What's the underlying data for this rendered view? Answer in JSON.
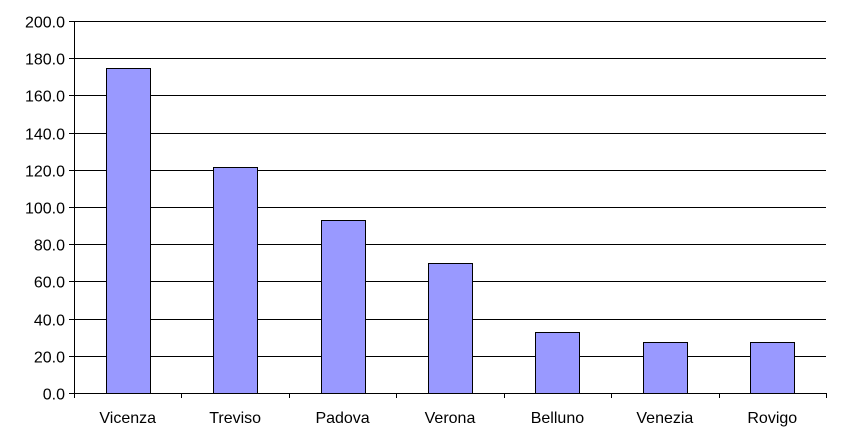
{
  "chart_data": {
    "type": "bar",
    "categories": [
      "Vicenza",
      "Treviso",
      "Padova",
      "Verona",
      "Belluno",
      "Venezia",
      "Rovigo"
    ],
    "values": [
      175.0,
      121.5,
      93.0,
      70.0,
      33.0,
      27.5,
      27.5
    ],
    "ylim": [
      0,
      200
    ],
    "ytick_step": 20,
    "ytick_labels": [
      "0.0",
      "20.0",
      "40.0",
      "60.0",
      "80.0",
      "100.0",
      "120.0",
      "140.0",
      "160.0",
      "180.0",
      "200.0"
    ],
    "grid": true,
    "bar_color": "#9999ff",
    "title": "",
    "xlabel": "",
    "ylabel": ""
  }
}
